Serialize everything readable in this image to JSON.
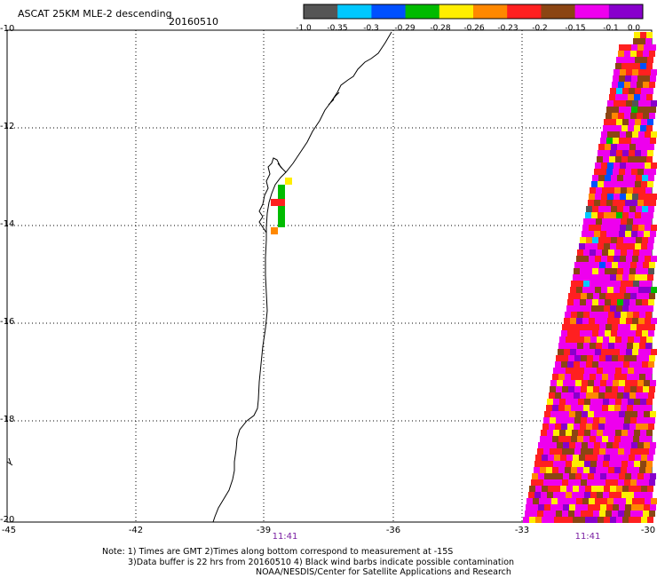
{
  "header": {
    "title": "ASCAT 25KM MLE-2 descending",
    "date": "20160510"
  },
  "colorbar": {
    "colors": [
      "#555555",
      "#00c8ff",
      "#0050ff",
      "#00bb00",
      "#ffee00",
      "#ff8800",
      "#ff2020",
      "#8b4513",
      "#ee00ee",
      "#8800cc"
    ],
    "tick_labels": [
      "-1.0",
      "-0.35",
      "-0.3",
      "-0.29",
      "-0.28",
      "-0.26",
      "-0.23",
      "-0.2",
      "-0.15",
      "-0.1",
      "0.0"
    ]
  },
  "axes": {
    "y_labels": [
      "-10",
      "-12",
      "-14",
      "-16",
      "-18",
      "-20"
    ],
    "x_labels": [
      "-45",
      "-42",
      "-39",
      "-36",
      "-33",
      "-30"
    ],
    "time_labels": [
      "11:41",
      "11:41"
    ]
  },
  "notes": [
    "Note: 1) Times are GMT 2)Times along bottom correspond to measurement at -15S",
    "3)Data buffer is 22 hrs from 20160510 4) Black wind barbs indicate possible contamination",
    "NOAA/NESDIS/Center for Satellite Applications and Research"
  ]
}
